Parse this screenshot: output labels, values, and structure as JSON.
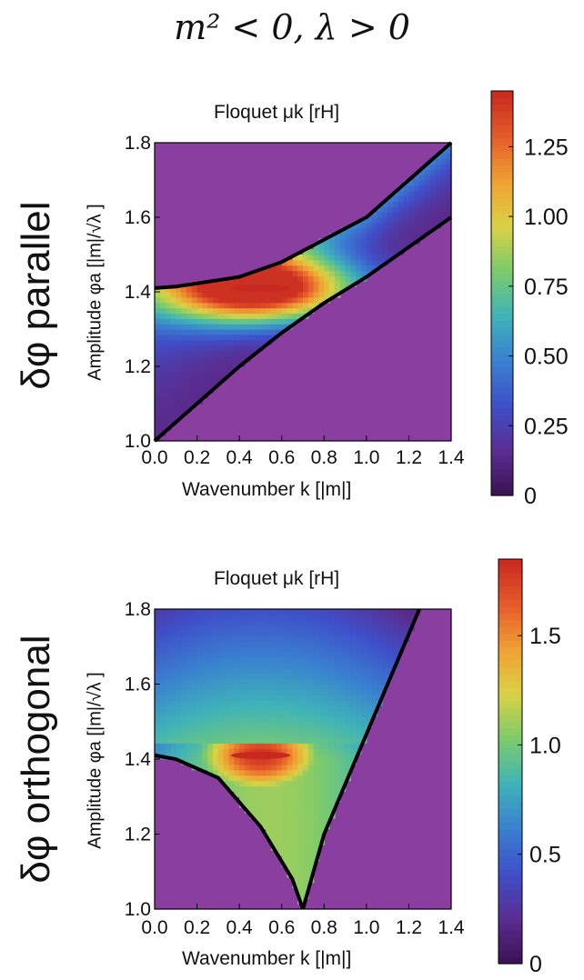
{
  "figure_title": "m² < 0, λ > 0",
  "chart_data": [
    {
      "type": "heatmap",
      "row_label": "δφ parallel",
      "title": "Floquet  μk [rH]",
      "xlabel": "Wavenumber  k [|m|]",
      "ylabel": "Amplitude  φa [|m|/√λ ]",
      "xlim": [
        0.0,
        1.4
      ],
      "ylim": [
        1.0,
        1.8
      ],
      "xticks": [
        "0.0",
        "0.2",
        "0.4",
        "0.6",
        "0.8",
        "1.0",
        "1.2",
        "1.4"
      ],
      "yticks": [
        "1.0",
        "1.2",
        "1.4",
        "1.6",
        "1.8"
      ],
      "colorbar": {
        "range": [
          0,
          1.45
        ],
        "ticks": [
          "0",
          "0.25",
          "0.50",
          "0.75",
          "1.00",
          "1.25"
        ],
        "tick_values": [
          0,
          0.25,
          0.5,
          0.75,
          1.0,
          1.25
        ]
      },
      "colormap": [
        "#3c1150",
        "#5a2d91",
        "#3f4fc9",
        "#3a80d0",
        "#3fb3b8",
        "#7ccb6b",
        "#d9d245",
        "#f0a033",
        "#e55b2a",
        "#c8281f"
      ],
      "background_color": "#8a3fa0",
      "instability_band": {
        "lower_boundary": [
          [
            0.0,
            1.0
          ],
          [
            0.2,
            1.1
          ],
          [
            0.4,
            1.2
          ],
          [
            0.6,
            1.29
          ],
          [
            0.8,
            1.37
          ],
          [
            1.0,
            1.44
          ],
          [
            1.2,
            1.52
          ],
          [
            1.4,
            1.6
          ]
        ],
        "upper_boundary": [
          [
            0.0,
            1.41
          ],
          [
            0.1,
            1.414
          ],
          [
            0.4,
            1.44
          ],
          [
            0.6,
            1.48
          ],
          [
            0.8,
            1.54
          ],
          [
            1.0,
            1.6
          ],
          [
            1.2,
            1.7
          ],
          [
            1.4,
            1.8
          ]
        ]
      },
      "peak": {
        "k": 0.5,
        "amplitude": 1.41,
        "mu": 1.42
      }
    },
    {
      "type": "heatmap",
      "row_label": "δφ orthogonal",
      "title": "Floquet  μk [rH]",
      "xlabel": "Wavenumber  k [|m|]",
      "ylabel": "Amplitude  φa [|m|/√λ ]",
      "xlim": [
        0.0,
        1.4
      ],
      "ylim": [
        1.0,
        1.8
      ],
      "xticks": [
        "0.0",
        "0.2",
        "0.4",
        "0.6",
        "0.8",
        "1.0",
        "1.2",
        "1.4"
      ],
      "yticks": [
        "1.0",
        "1.2",
        "1.4",
        "1.6",
        "1.8"
      ],
      "colorbar": {
        "range": [
          0,
          1.85
        ],
        "ticks": [
          "0",
          "0.5",
          "1.0",
          "1.5"
        ],
        "tick_values": [
          0,
          0.5,
          1.0,
          1.5
        ]
      },
      "colormap": [
        "#3c1150",
        "#5a2d91",
        "#3f4fc9",
        "#3a80d0",
        "#3fb3b8",
        "#7ccb6b",
        "#d9d245",
        "#f0a033",
        "#e55b2a",
        "#c8281f"
      ],
      "background_color": "#8a3fa0",
      "instability_region": {
        "right_boundary": [
          [
            0.7,
            1.0
          ],
          [
            0.8,
            1.2
          ],
          [
            0.95,
            1.4
          ],
          [
            1.1,
            1.6
          ],
          [
            1.25,
            1.8
          ]
        ],
        "lower_left_boundary": [
          [
            0.0,
            1.41
          ],
          [
            0.1,
            1.4
          ],
          [
            0.3,
            1.35
          ],
          [
            0.5,
            1.22
          ],
          [
            0.65,
            1.08
          ],
          [
            0.7,
            1.0
          ]
        ]
      },
      "peak": {
        "k": 0.5,
        "amplitude": 1.41,
        "mu": 1.8
      }
    }
  ]
}
